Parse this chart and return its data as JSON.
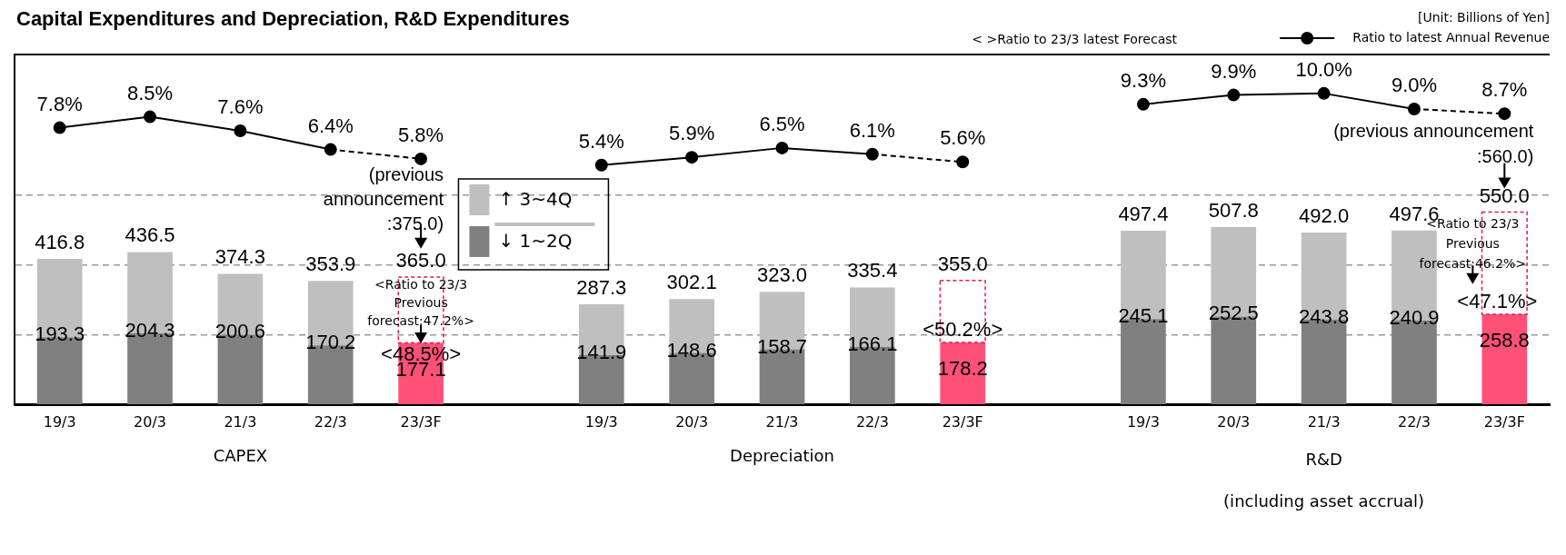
{
  "chart_data": {
    "type": "bar",
    "title": "Capital Expenditures and Depreciation, R&D Expenditures",
    "stacked": true,
    "categories": [
      "19/3",
      "20/3",
      "21/3",
      "22/3",
      "23/3F",
      null,
      "19/3",
      "20/3",
      "21/3",
      "22/3",
      "23/3F",
      null,
      "19/3",
      "20/3",
      "21/3",
      "22/3",
      "23/3F"
    ],
    "series": [
      {
        "name": "↓ 1~2Q",
        "color": "#808080",
        "colors": [
          "#808080",
          "#808080",
          "#808080",
          "#808080",
          "#ff5078",
          null,
          "#808080",
          "#808080",
          "#808080",
          "#808080",
          "#ff5078",
          null,
          "#808080",
          "#808080",
          "#808080",
          "#808080",
          "#ff5078"
        ],
        "values": [
          193.3,
          204.3,
          200.6,
          170.2,
          177.1,
          null,
          141.9,
          148.6,
          158.7,
          166.1,
          178.2,
          null,
          245.1,
          252.5,
          243.8,
          240.9,
          258.8
        ],
        "value_labels": [
          "193.3",
          "204.3",
          "200.6",
          "170.2",
          "177.1",
          null,
          "141.9",
          "148.6",
          "158.7",
          "166.1",
          "178.2",
          null,
          "245.1",
          "252.5",
          "243.8",
          "240.9",
          "258.8"
        ]
      },
      {
        "name": "↑ 3~4Q",
        "color": "#bfbfbf",
        "colors": [
          "#bfbfbf",
          "#bfbfbf",
          "#bfbfbf",
          "#bfbfbf",
          "#e8174f",
          null,
          "#bfbfbf",
          "#bfbfbf",
          "#bfbfbf",
          "#bfbfbf",
          "#e8174f",
          null,
          "#bfbfbf",
          "#bfbfbf",
          "#bfbfbf",
          "#bfbfbf",
          "#e8174f"
        ],
        "values": [
          223.5,
          232.2,
          173.7,
          183.7,
          187.9,
          null,
          145.4,
          153.5,
          164.3,
          169.3,
          176.8,
          null,
          252.3,
          255.3,
          248.2,
          256.7,
          291.2
        ]
      },
      {
        "name": "Ratio to latest Annual Revenue",
        "type": "line",
        "axis": "y2",
        "color": "#000000",
        "marker": "circle",
        "values": [
          7.8,
          8.5,
          7.6,
          6.4,
          5.8,
          null,
          5.4,
          5.9,
          6.5,
          6.1,
          5.6,
          null,
          9.3,
          9.9,
          10.0,
          9.0,
          8.7
        ],
        "value_labels": [
          "7.8%",
          "8.5%",
          "7.6%",
          "6.4%",
          "5.8%",
          null,
          "5.4%",
          "5.9%",
          "6.5%",
          "6.1%",
          "5.6%",
          null,
          "9.3%",
          "9.9%",
          "10.0%",
          "9.0%",
          "8.7%"
        ]
      }
    ],
    "totals": [
      "416.8",
      "436.5",
      "374.3",
      "353.9",
      "365.0",
      null,
      "287.3",
      "302.1",
      "323.0",
      "335.4",
      "355.0",
      null,
      "497.4",
      "507.8",
      "492.0",
      "497.6",
      "550.0"
    ],
    "ylim": [
      0,
      1000
    ],
    "yticks": [
      {
        "value": 0,
        "label": null
      },
      {
        "value": 200,
        "label": null
      },
      {
        "value": 400,
        "label": null
      },
      {
        "value": 600,
        "label": null
      }
    ],
    "tick_labels": "x",
    "y2lim": [
      -10,
      12.5
    ],
    "grid": "y",
    "legend": "top right",
    "annotations": [
      "[Unit: Billions of Yen]",
      "< >Ratio to 23/3 latest Forecast",
      "(previous announcement :375.0)",
      "<Ratio to 23/3 Previous forecast:47.2%>",
      "<48.5%>",
      "<50.2%>",
      "(previous announcement :560.0)",
      "<Ratio to 23/3 Previous forecast:46.2%>",
      "<47.1%>",
      "CAPEX",
      "Depreciation",
      "R&D",
      "(including asset accrual)"
    ]
  }
}
